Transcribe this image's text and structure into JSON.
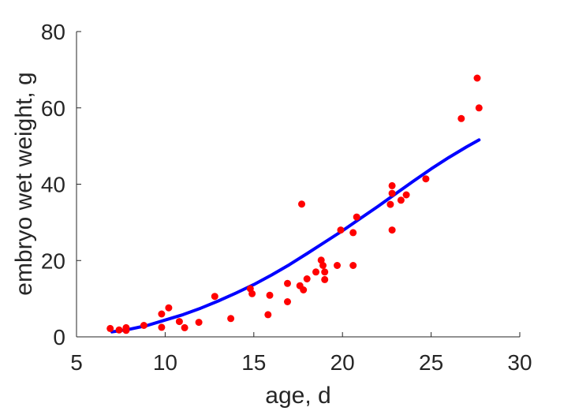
{
  "chart_data": {
    "type": "scatter",
    "xlabel": "age, d",
    "ylabel": "embryo wet weight, g",
    "xlim": [
      5,
      30
    ],
    "ylim": [
      0,
      80
    ],
    "xticks": [
      5,
      10,
      15,
      20,
      25,
      30
    ],
    "yticks": [
      0,
      20,
      40,
      60,
      80
    ],
    "grid": false,
    "series": [
      {
        "kind": "points",
        "color": "#ff0000",
        "points": [
          [
            6.9,
            2.2
          ],
          [
            7.4,
            1.8
          ],
          [
            7.8,
            2.4
          ],
          [
            7.8,
            1.7
          ],
          [
            8.8,
            3.0
          ],
          [
            9.8,
            2.5
          ],
          [
            9.8,
            6.0
          ],
          [
            10.2,
            7.6
          ],
          [
            10.8,
            4.0
          ],
          [
            11.1,
            2.4
          ],
          [
            11.9,
            3.8
          ],
          [
            12.8,
            10.6
          ],
          [
            13.7,
            4.8
          ],
          [
            14.8,
            12.6
          ],
          [
            14.9,
            11.3
          ],
          [
            15.9,
            10.9
          ],
          [
            15.8,
            5.8
          ],
          [
            16.9,
            14.0
          ],
          [
            16.9,
            9.2
          ],
          [
            17.6,
            13.4
          ],
          [
            17.7,
            34.8
          ],
          [
            17.8,
            12.3
          ],
          [
            18.0,
            15.2
          ],
          [
            18.5,
            17.0
          ],
          [
            18.8,
            20.1
          ],
          [
            18.9,
            18.7
          ],
          [
            19.0,
            15.0
          ],
          [
            19.0,
            17.0
          ],
          [
            19.7,
            18.7
          ],
          [
            19.9,
            28.0
          ],
          [
            20.6,
            18.7
          ],
          [
            20.6,
            27.3
          ],
          [
            20.8,
            31.4
          ],
          [
            22.7,
            34.7
          ],
          [
            22.8,
            37.6
          ],
          [
            22.8,
            39.6
          ],
          [
            22.8,
            28.0
          ],
          [
            23.3,
            35.8
          ],
          [
            23.6,
            37.2
          ],
          [
            24.7,
            41.4
          ],
          [
            26.7,
            57.2
          ],
          [
            27.6,
            67.8
          ],
          [
            27.7,
            60.0
          ]
        ]
      },
      {
        "kind": "fit-curve",
        "color": "#0000ff",
        "points": [
          [
            7.0,
            1.3
          ],
          [
            8.0,
            2.0
          ],
          [
            9.0,
            3.0
          ],
          [
            10.0,
            4.4
          ],
          [
            11.0,
            5.8
          ],
          [
            12.0,
            7.5
          ],
          [
            13.0,
            9.4
          ],
          [
            14.0,
            11.5
          ],
          [
            15.0,
            13.7
          ],
          [
            16.0,
            16.2
          ],
          [
            17.0,
            18.9
          ],
          [
            18.0,
            21.8
          ],
          [
            19.0,
            24.8
          ],
          [
            20.0,
            27.8
          ],
          [
            21.0,
            31.0
          ],
          [
            22.0,
            34.2
          ],
          [
            23.0,
            37.5
          ],
          [
            24.0,
            40.8
          ],
          [
            25.0,
            44.0
          ],
          [
            26.0,
            47.0
          ],
          [
            27.0,
            49.8
          ],
          [
            27.7,
            51.6
          ]
        ]
      }
    ]
  }
}
